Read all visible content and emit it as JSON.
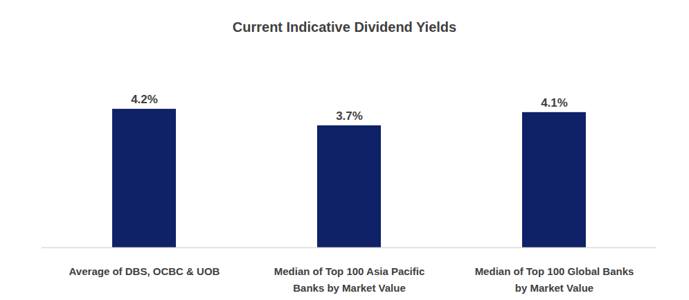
{
  "chart_data": {
    "type": "bar",
    "title": "Current Indicative Dividend Yields",
    "categories": [
      "Average of DBS, OCBC & UOB",
      "Median of Top 100 Asia Pacific Banks by Market Value",
      "Median of Top 100 Global Banks by Market Value"
    ],
    "values": [
      4.2,
      3.7,
      4.1
    ],
    "value_labels": [
      "4.2%",
      "3.7%",
      "4.1%"
    ],
    "color": "#0f2167",
    "ylim": [
      0,
      5
    ],
    "data_labels": true,
    "tick_labels": "x",
    "grid": false
  }
}
